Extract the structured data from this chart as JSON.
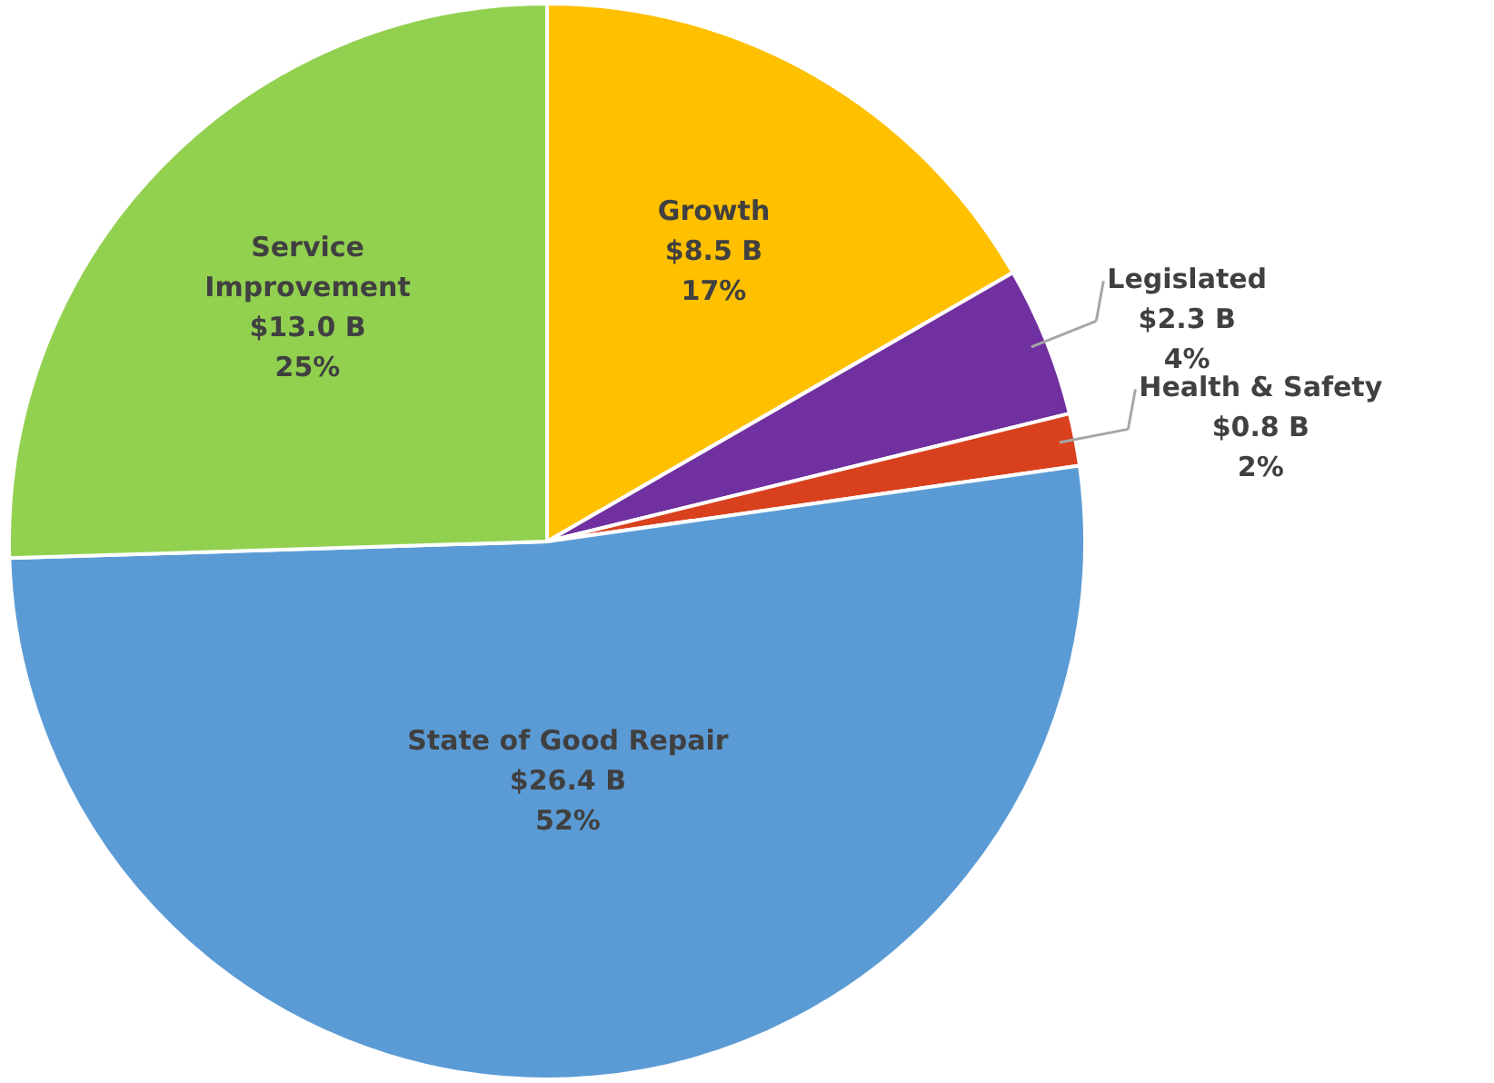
{
  "chart_data": {
    "type": "pie",
    "categories": [
      "Growth",
      "Legislated",
      "Health & Safety",
      "State of Good Repair",
      "Service Improvement"
    ],
    "values": [
      8.5,
      2.3,
      0.8,
      26.4,
      13.0
    ],
    "colors": [
      "#ffc000",
      "#7030a0",
      "#d9411e",
      "#5b9bd5",
      "#92d050"
    ],
    "value_labels": [
      "$8.5 B\n17%",
      "$2.3 B\n4%",
      "$0.8 B\n2%",
      "$26.4 B\n52%",
      "$13.0 B\n25%"
    ],
    "legend": false
  }
}
